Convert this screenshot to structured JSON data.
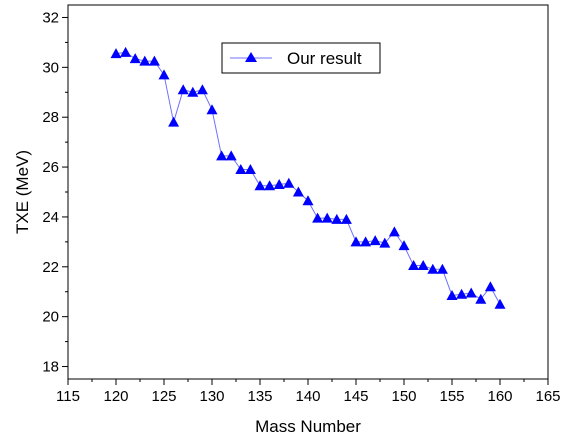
{
  "chart_data": {
    "type": "line",
    "title": "",
    "xlabel": "Mass Number",
    "ylabel": "TXE (MeV)",
    "xlim": [
      115,
      165
    ],
    "ylim": [
      17.5,
      32.5
    ],
    "x_ticks": [
      115,
      120,
      125,
      130,
      135,
      140,
      145,
      150,
      155,
      160,
      165
    ],
    "y_ticks": [
      18,
      20,
      22,
      24,
      26,
      28,
      30,
      32
    ],
    "grid": false,
    "legend_position": "top-center",
    "series": [
      {
        "name": "Our result",
        "color": "#0000ff",
        "line_color": "#7070ff",
        "marker": "triangle-up",
        "x": [
          120,
          121,
          122,
          123,
          124,
          125,
          126,
          127,
          128,
          129,
          130,
          131,
          132,
          133,
          134,
          135,
          136,
          137,
          138,
          139,
          140,
          141,
          142,
          143,
          144,
          145,
          146,
          147,
          148,
          149,
          150,
          151,
          152,
          153,
          154,
          155,
          156,
          157,
          158,
          159,
          160
        ],
        "y": [
          30.55,
          30.6,
          30.35,
          30.25,
          30.25,
          29.7,
          27.8,
          29.1,
          29.0,
          29.1,
          28.3,
          26.45,
          26.45,
          25.9,
          25.9,
          25.25,
          25.25,
          25.3,
          25.35,
          25.0,
          24.65,
          23.95,
          23.95,
          23.9,
          23.9,
          23.0,
          23.0,
          23.05,
          22.95,
          23.4,
          22.85,
          22.05,
          22.05,
          21.9,
          21.9,
          20.85,
          20.9,
          20.95,
          20.7,
          21.2,
          20.5
        ]
      }
    ]
  }
}
